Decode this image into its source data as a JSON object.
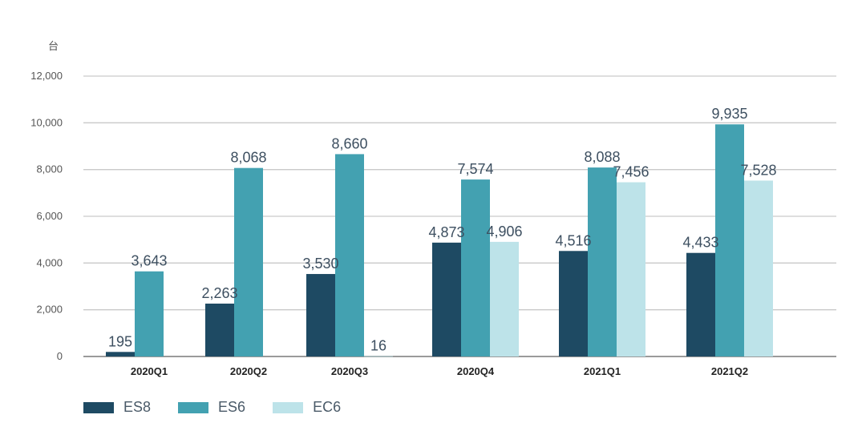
{
  "chart_data": {
    "type": "bar",
    "unit_label": "台",
    "categories": [
      "2020Q1",
      "2020Q2",
      "2020Q3",
      "2020Q4",
      "2021Q1",
      "2021Q2"
    ],
    "ylim": [
      0,
      12000
    ],
    "y_ticks": [
      0,
      2000,
      4000,
      6000,
      8000,
      10000,
      12000
    ],
    "y_tick_labels": [
      "0",
      "2,000",
      "4,000",
      "6,000",
      "8,000",
      "10,000",
      "12,000"
    ],
    "grid": true,
    "legend_position": "bottom-left",
    "series": [
      {
        "name": "ES8",
        "color": "#1e4a63",
        "values": [
          195,
          2263,
          3530,
          4873,
          4516,
          4433
        ],
        "labels": [
          "195",
          "2,263",
          "3,530",
          "4,873",
          "4,516",
          "4,433"
        ]
      },
      {
        "name": "ES6",
        "color": "#43a1b1",
        "values": [
          3643,
          8068,
          8660,
          7574,
          8088,
          9935
        ],
        "labels": [
          "3,643",
          "8,068",
          "8,660",
          "7,574",
          "8,088",
          "9,935"
        ]
      },
      {
        "name": "EC6",
        "color": "#bde3e9",
        "values": [
          null,
          null,
          16,
          4906,
          7456,
          7528
        ],
        "labels": [
          null,
          null,
          "16",
          "4,906",
          "7,456",
          "7,528"
        ]
      }
    ]
  }
}
